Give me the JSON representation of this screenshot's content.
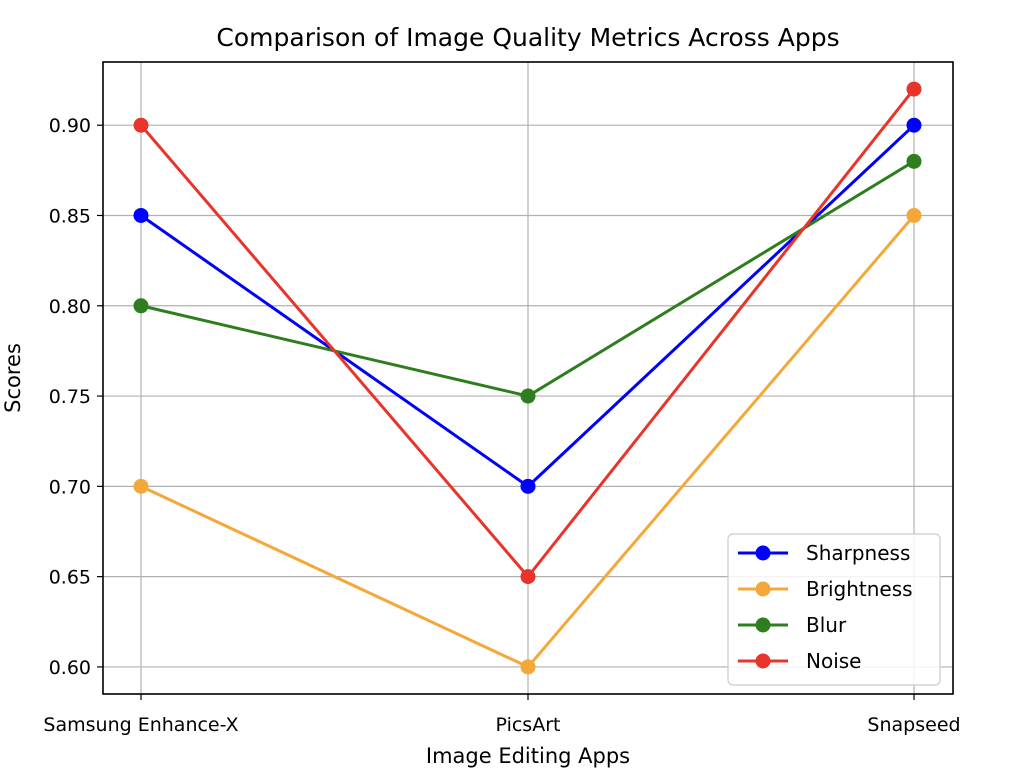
{
  "chart_data": {
    "type": "line",
    "title": "Comparison of Image Quality Metrics Across Apps",
    "xlabel": "Image Editing Apps",
    "ylabel": "Scores",
    "categories": [
      "Samsung Enhance-X",
      "PicsArt",
      "Snapseed"
    ],
    "ylim": [
      0.585,
      0.935
    ],
    "yticks": [
      0.6,
      0.65,
      0.7,
      0.75,
      0.8,
      0.85,
      0.9
    ],
    "ytick_labels": [
      "0.60",
      "0.65",
      "0.70",
      "0.75",
      "0.80",
      "0.85",
      "0.90"
    ],
    "grid": true,
    "legend_position": "lower-right",
    "series": [
      {
        "name": "Sharpness",
        "color": "#0000ff",
        "values": [
          0.85,
          0.7,
          0.9
        ]
      },
      {
        "name": "Brightness",
        "color": "#f4a83a",
        "values": [
          0.7,
          0.6,
          0.85
        ]
      },
      {
        "name": "Blur",
        "color": "#2e7d1e",
        "values": [
          0.8,
          0.75,
          0.88
        ]
      },
      {
        "name": "Noise",
        "color": "#e8352b",
        "values": [
          0.9,
          0.65,
          0.92
        ]
      }
    ]
  }
}
